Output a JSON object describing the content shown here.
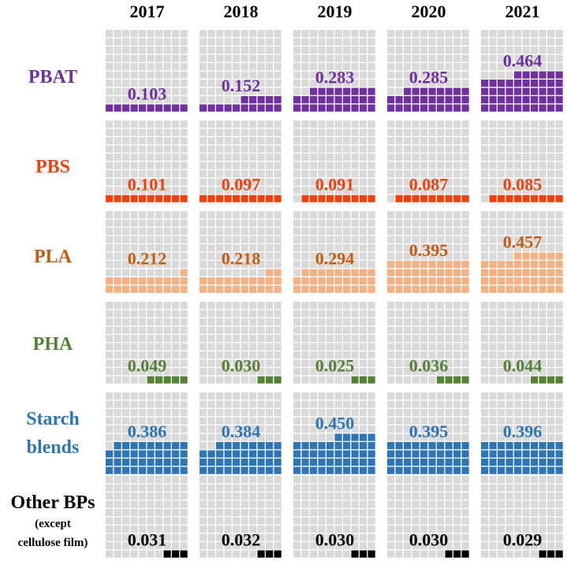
{
  "chart_data": {
    "type": "waffle",
    "categories": [
      "2017",
      "2018",
      "2019",
      "2020",
      "2021"
    ],
    "series": [
      {
        "name": "PBAT",
        "label_lines": [
          "PBAT"
        ],
        "color": "#7030A0",
        "values": [
          0.103,
          0.152,
          0.283,
          0.285,
          0.464
        ]
      },
      {
        "name": "PBS",
        "label_lines": [
          "PBS"
        ],
        "color": "#F0400E",
        "values": [
          0.101,
          0.097,
          0.091,
          0.087,
          0.085
        ]
      },
      {
        "name": "PLA",
        "label_lines": [
          "PLA"
        ],
        "color": "#F4B183",
        "text_color": "#C55A11",
        "values": [
          0.212,
          0.218,
          0.294,
          0.395,
          0.457
        ]
      },
      {
        "name": "PHA",
        "label_lines": [
          "PHA"
        ],
        "color": "#548235",
        "values": [
          0.049,
          0.03,
          0.025,
          0.036,
          0.044
        ]
      },
      {
        "name": "Starch blends",
        "label_lines": [
          "Starch",
          "blends"
        ],
        "color": "#2E75B6",
        "values": [
          0.386,
          0.384,
          0.45,
          0.395,
          0.396
        ]
      },
      {
        "name": "Other BPs (except cellulose film)",
        "label_lines": [
          "Other BPs",
          "(except",
          "cellulose film)"
        ],
        "color": "#000000",
        "values": [
          0.031,
          0.032,
          0.03,
          0.03,
          0.029
        ]
      }
    ],
    "filled_cells": [
      [
        10,
        15,
        28,
        28,
        46
      ],
      [
        10,
        10,
        9,
        9,
        9
      ],
      [
        21,
        22,
        29,
        40,
        46
      ],
      [
        5,
        3,
        3,
        4,
        4
      ],
      [
        39,
        38,
        45,
        40,
        40
      ],
      [
        3,
        3,
        3,
        3,
        3
      ]
    ],
    "grid": {
      "rows": 10,
      "cols": 10,
      "total_cells": 100,
      "empty_color": "#D9D9D9"
    }
  }
}
